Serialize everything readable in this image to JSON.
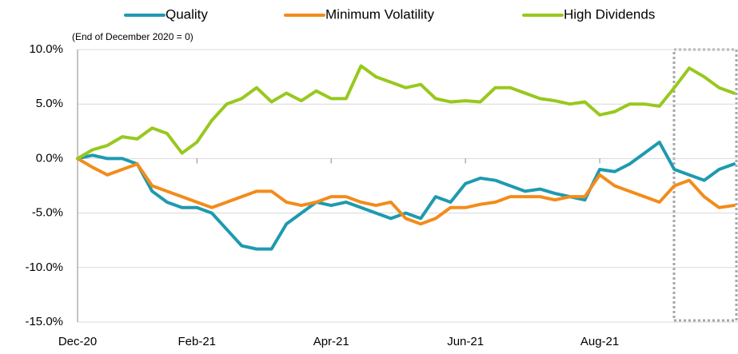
{
  "chart_data": {
    "type": "line",
    "annotation": "(End of December 2020 = 0)",
    "categories": [
      "Dec-20",
      null,
      null,
      null,
      null,
      null,
      null,
      null,
      "Feb-21",
      null,
      null,
      null,
      null,
      null,
      null,
      null,
      null,
      "Apr-21",
      null,
      null,
      null,
      null,
      null,
      null,
      null,
      null,
      "Jun-21",
      null,
      null,
      null,
      null,
      null,
      null,
      null,
      null,
      "Aug-21",
      null,
      null,
      null,
      null,
      null,
      null,
      null,
      null,
      null
    ],
    "series": [
      {
        "name": "Quality",
        "color": "#1e9ab0",
        "values": [
          0,
          0.3,
          0,
          0,
          -0.5,
          -3,
          -4,
          -4.5,
          -4.5,
          -5,
          -6.5,
          -8,
          -8.3,
          -8.3,
          -6,
          -5,
          -4,
          -4.3,
          -4,
          -4.5,
          -5,
          -5.5,
          -5,
          -5.5,
          -3.5,
          -4,
          -2.3,
          -1.8,
          -2,
          -2.5,
          -3,
          -2.8,
          -3.2,
          -3.5,
          -3.8,
          -1,
          -1.2,
          -0.5,
          0.5,
          1.5,
          -1,
          -1.5,
          -2,
          -1,
          -0.5
        ]
      },
      {
        "name": "Minimum Volatility",
        "color": "#f28c1b",
        "values": [
          0,
          -0.8,
          -1.5,
          -1,
          -0.5,
          -2.5,
          -3,
          -3.5,
          -4,
          -4.5,
          -4,
          -3.5,
          -3,
          -3,
          -4,
          -4.3,
          -4,
          -3.5,
          -3.5,
          -4,
          -4.3,
          -4,
          -5.5,
          -6,
          -5.5,
          -4.5,
          -4.5,
          -4.2,
          -4,
          -3.5,
          -3.5,
          -3.5,
          -3.8,
          -3.5,
          -3.5,
          -1.5,
          -2.5,
          -3,
          -3.5,
          -4,
          -2.5,
          -2,
          -3.5,
          -4.5,
          -4.3
        ]
      },
      {
        "name": "High Dividends",
        "color": "#98c81e",
        "values": [
          0,
          0.8,
          1.2,
          2,
          1.8,
          2.8,
          2.3,
          0.5,
          1.5,
          3.5,
          5,
          5.5,
          6.5,
          5.2,
          6,
          5.3,
          6.2,
          5.5,
          5.5,
          8.5,
          7.5,
          7,
          6.5,
          6.8,
          5.5,
          5.2,
          5.3,
          5.2,
          6.5,
          6.5,
          6,
          5.5,
          5.3,
          5,
          5.2,
          4,
          4.3,
          5,
          5,
          4.8,
          6.5,
          8.3,
          7.5,
          6.5,
          6
        ]
      }
    ],
    "ylim": [
      -15,
      10
    ],
    "yticks": [
      {
        "value": 10,
        "label": "10.0%"
      },
      {
        "value": 5,
        "label": "5.0%"
      },
      {
        "value": 0,
        "label": "0.0%"
      },
      {
        "value": -5,
        "label": "-5.0%"
      },
      {
        "value": -10,
        "label": "-10.0%"
      },
      {
        "value": -15,
        "label": "-15.0%"
      }
    ],
    "grid": true,
    "legend": "top"
  }
}
